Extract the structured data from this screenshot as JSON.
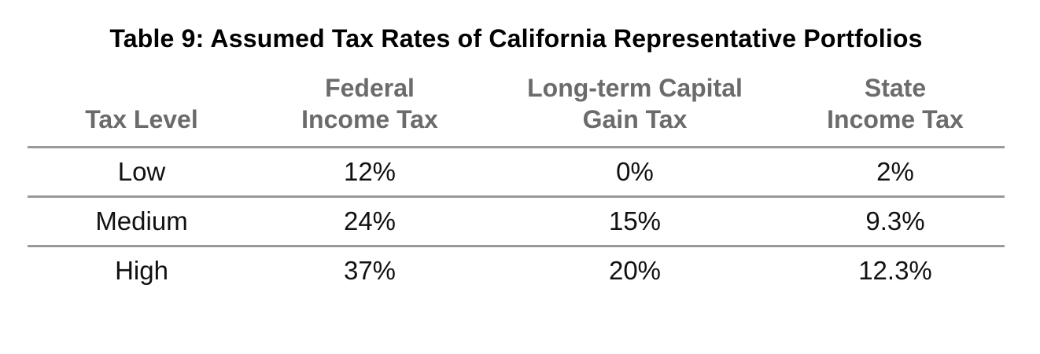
{
  "title": "Table 9: Assumed Tax Rates of California Representative Portfolios",
  "table": {
    "columns": [
      {
        "id": "tax_level",
        "label": "Tax Level"
      },
      {
        "id": "federal_income_tax",
        "label": "Federal\nIncome Tax"
      },
      {
        "id": "long_term_capital_gain_tax",
        "label": "Long-term Capital\nGain Tax"
      },
      {
        "id": "state_income_tax",
        "label": "State\nIncome Tax"
      }
    ],
    "rows": [
      {
        "tax_level": "Low",
        "federal_income_tax": "12%",
        "long_term_capital_gain_tax": "0%",
        "state_income_tax": "2%"
      },
      {
        "tax_level": "Medium",
        "federal_income_tax": "24%",
        "long_term_capital_gain_tax": "15%",
        "state_income_tax": "9.3%"
      },
      {
        "tax_level": "High",
        "federal_income_tax": "37%",
        "long_term_capital_gain_tax": "20%",
        "state_income_tax": "12.3%"
      }
    ]
  },
  "colors": {
    "title_text": "#000000",
    "header_text": "#6b6b6b",
    "data_text": "#111111",
    "rule": "#999999",
    "background": "#ffffff"
  }
}
